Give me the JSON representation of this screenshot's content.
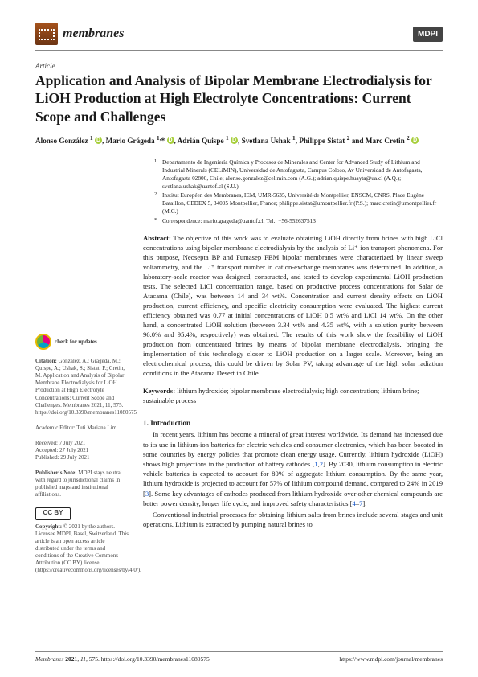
{
  "journal": {
    "name": "membranes"
  },
  "publisher_badge": "MDPI",
  "article_type": "Article",
  "title": "Application and Analysis of Bipolar Membrane Electrodialysis for LiOH Production at High Electrolyte Concentrations: Current Scope and Challenges",
  "authors_html": "Alonso González ¹ ⓘ, Mario Grágeda ¹·* ⓘ, Adrián Quispe ¹ ⓘ, Svetlana Ushak ¹, Philippe Sistat ² and Marc Cretin ² ⓘ",
  "affiliations": [
    {
      "sup": "1",
      "text": "Departamento de Ingeniería Química y Procesos de Minerales and Center for Advanced Study of Lithium and Industrial Minerals (CELiMIN), Universidad de Antofagasta, Campus Coloso, Av Universidad de Antofagasta, Antofagasta 02800, Chile; alonso.gonzalez@celimin.com (A.G.); adrian.quispe.huayta@ua.cl (A.Q.); svetlana.ushak@uantof.cl (S.U.)"
    },
    {
      "sup": "2",
      "text": "Institut Européen des Membranes, IEM, UMR-5635, Université de Montpellier, ENSCM, CNRS, Place Eugène Bataillon, CEDEX 5, 34095 Montpellier, France; philippe.sistat@umontpellier.fr (P.S.); marc.cretin@umontpellier.fr (M.C.)"
    },
    {
      "sup": "*",
      "text": "Correspondence: mario.grageda@uantof.cl; Tel.: +56-552637513"
    }
  ],
  "abstract_label": "Abstract:",
  "abstract": "The objective of this work was to evaluate obtaining LiOH directly from brines with high LiCl concentrations using bipolar membrane electrodialysis by the analysis of Li⁺ ion transport phenomena. For this purpose, Neosepta BP and Fumasep FBM bipolar membranes were characterized by linear sweep voltammetry, and the Li⁺ transport number in cation-exchange membranes was determined. In addition, a laboratory-scale reactor was designed, constructed, and tested to develop experimental LiOH production tests. The selected LiCl concentration range, based on productive process concentrations for Salar de Atacama (Chile), was between 14 and 34 wt%. Concentration and current density effects on LiOH production, current efficiency, and specific electricity consumption were evaluated. The highest current efficiency obtained was 0.77 at initial concentrations of LiOH 0.5 wt% and LiCl 14 wt%. On the other hand, a concentrated LiOH solution (between 3.34 wt% and 4.35 wt%, with a solution purity between 96.0% and 95.4%, respectively) was obtained. The results of this work show the feasibility of LiOH production from concentrated brines by means of bipolar membrane electrodialysis, bringing the implementation of this technology closer to LiOH production on a larger scale. Moreover, being an electrochemical process, this could be driven by Solar PV, taking advantage of the high solar radiation conditions in the Atacama Desert in Chile.",
  "keywords_label": "Keywords:",
  "keywords": "lithium hydroxide; bipolar membrane electrodialysis; high concentration; lithium brine; sustainable process",
  "section1": {
    "heading": "1. Introduction"
  },
  "intro_p1": "In recent years, lithium has become a mineral of great interest worldwide. Its demand has increased due to its use in lithium-ion batteries for electric vehicles and consumer electronics, which has been boosted in some countries by energy policies that promote clean energy usage. Currently, lithium hydroxide (LiOH) shows high projections in the production of battery cathodes [1,2]. By 2030, lithium consumption in electric vehicle batteries is expected to account for 80% of aggregate lithium consumption. By the same year, lithium hydroxide is projected to account for 57% of lithium compound demand, compared to 24% in 2019 [3]. Some key advantages of cathodes produced from lithium hydroxide over other chemical compounds are better power density, longer life cycle, and improved safety characteristics [4–7].",
  "intro_p2": "Conventional industrial processes for obtaining lithium salts from brines include several stages and unit operations. Lithium is extracted by pumping natural brines to",
  "sidebar": {
    "check_updates": "check for updates",
    "citation_label": "Citation:",
    "citation": "González, A.; Grágeda, M.; Quispe, A.; Ushak, S.; Sistat, P.; Cretin, M. Application and Analysis of Bipolar Membrane Electrodialysis for LiOH Production at High Electrolyte Concentrations: Current Scope and Challenges. Membranes 2021, 11, 575. https://doi.org/10.3390/membranes11080575",
    "editor_label": "Academic Editor:",
    "editor": "Tuti Mariana Lim",
    "received": "Received: 7 July 2021",
    "accepted": "Accepted: 27 July 2021",
    "published": "Published: 29 July 2021",
    "pubnote_label": "Publisher's Note:",
    "pubnote": "MDPI stays neutral with regard to jurisdictional claims in published maps and institutional affiliations.",
    "copyright_label": "Copyright:",
    "copyright": "© 2021 by the authors. Licensee MDPI, Basel, Switzerland. This article is an open access article distributed under the terms and conditions of the Creative Commons Attribution (CC BY) license (https://creativecommons.org/licenses/by/4.0/).",
    "cc_text": "CC  BY"
  },
  "footer": {
    "left": "Membranes 2021, 11, 575. https://doi.org/10.3390/membranes11080575",
    "right": "https://www.mdpi.com/journal/membranes"
  },
  "colors": {
    "link": "#1155cc",
    "orcid_bg": "#a6ce39",
    "rule": "#888888"
  }
}
